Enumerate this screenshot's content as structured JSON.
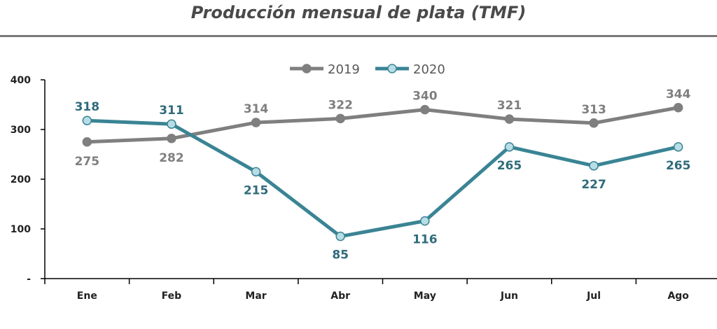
{
  "chart_data": {
    "type": "line",
    "title": "Producción mensual de plata (TMF)",
    "categories": [
      "Ene",
      "Feb",
      "Mar",
      "Abr",
      "May",
      "Jun",
      "Jul",
      "Ago"
    ],
    "y_tick_labels": [
      "-",
      "100",
      "200",
      "300",
      "400"
    ],
    "ylim": [
      0,
      400
    ],
    "grid": false,
    "legend_position": "top",
    "series": [
      {
        "name": "2019",
        "values": [
          275,
          282,
          314,
          322,
          340,
          321,
          313,
          344
        ],
        "color": "#7f7f7f",
        "marker_fill": "#7f7f7f"
      },
      {
        "name": "2020",
        "values": [
          318,
          311,
          215,
          85,
          116,
          265,
          227,
          265
        ],
        "color": "#3a8494",
        "marker_fill": "#b7dde6"
      }
    ]
  }
}
